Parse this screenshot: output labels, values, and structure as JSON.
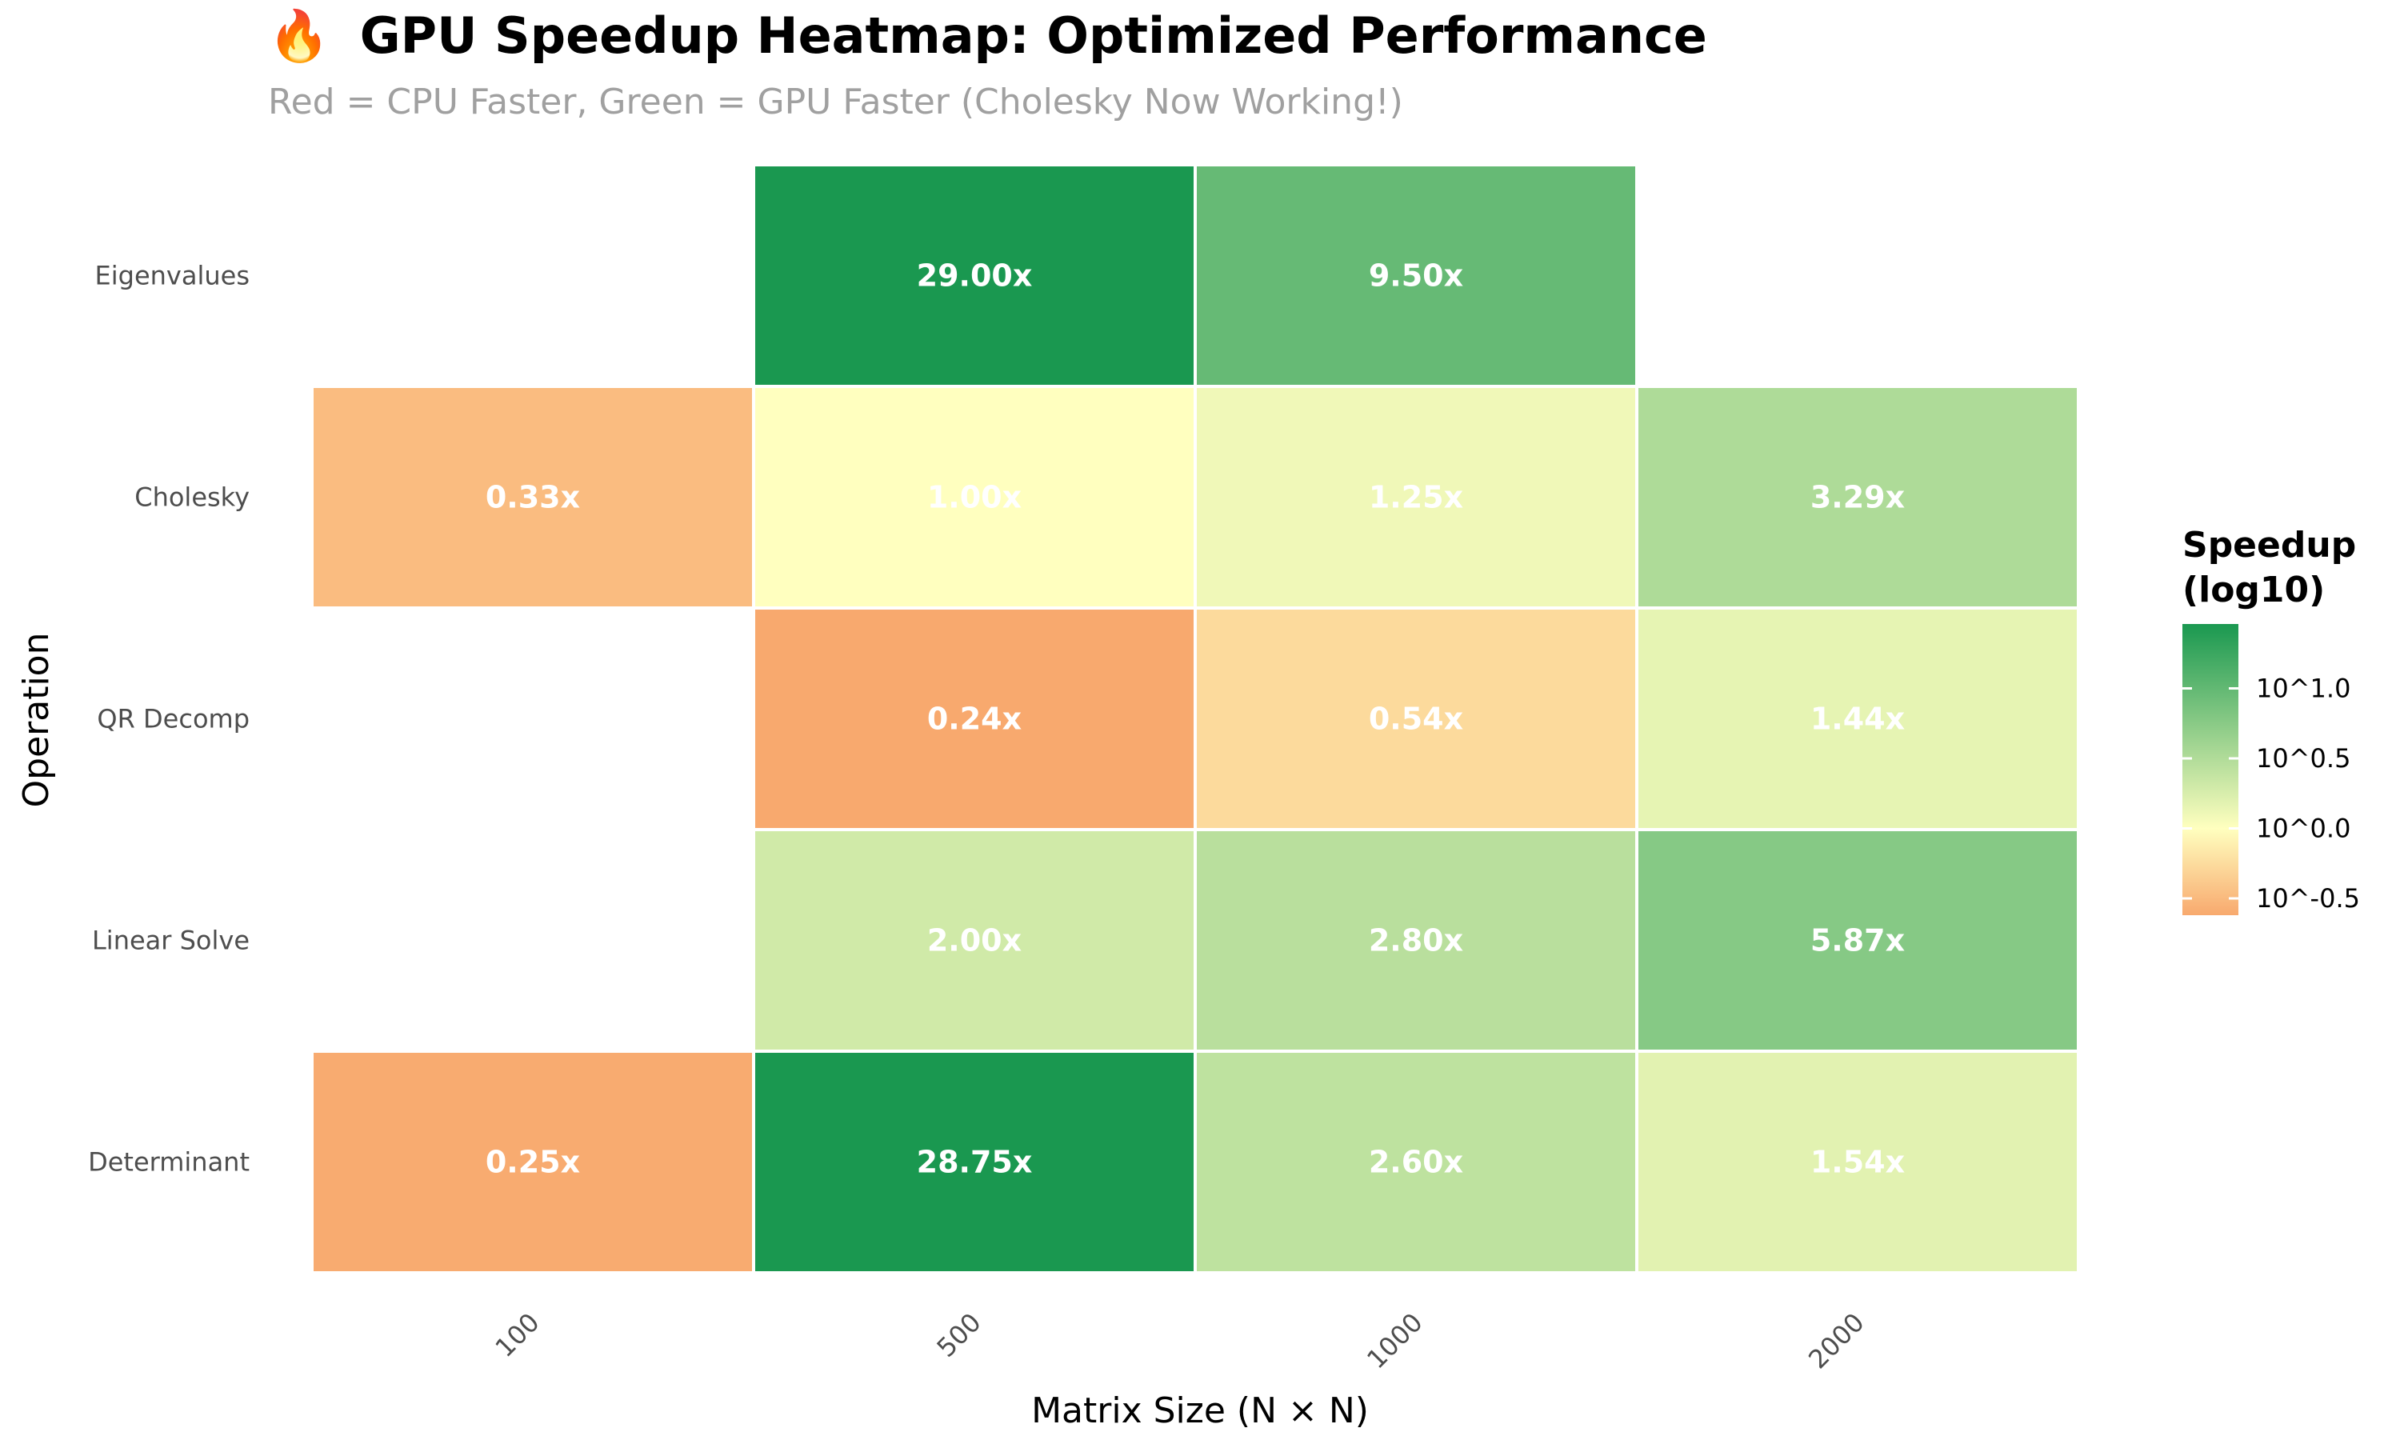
{
  "chart_data": {
    "type": "heatmap",
    "title_icon": "🔥",
    "title": "GPU Speedup Heatmap: Optimized Performance",
    "subtitle": "Red = CPU Faster, Green = GPU Faster (Cholesky Now Working!)",
    "xlabel": "Matrix Size (N × N)",
    "ylabel": "Operation",
    "x": [
      "100",
      "500",
      "1000",
      "2000"
    ],
    "y": [
      "Eigenvalues",
      "Cholesky",
      "QR Decomp",
      "Linear Solve",
      "Determinant"
    ],
    "cells": [
      {
        "row": "Eigenvalues",
        "col": "500",
        "value": 29.0,
        "label": "29.00x"
      },
      {
        "row": "Eigenvalues",
        "col": "1000",
        "value": 9.5,
        "label": "9.50x"
      },
      {
        "row": "Cholesky",
        "col": "100",
        "value": 0.33,
        "label": "0.33x"
      },
      {
        "row": "Cholesky",
        "col": "500",
        "value": 1.0,
        "label": "1.00x"
      },
      {
        "row": "Cholesky",
        "col": "1000",
        "value": 1.25,
        "label": "1.25x"
      },
      {
        "row": "Cholesky",
        "col": "2000",
        "value": 3.29,
        "label": "3.29x"
      },
      {
        "row": "QR Decomp",
        "col": "500",
        "value": 0.24,
        "label": "0.24x"
      },
      {
        "row": "QR Decomp",
        "col": "1000",
        "value": 0.54,
        "label": "0.54x"
      },
      {
        "row": "QR Decomp",
        "col": "2000",
        "value": 1.44,
        "label": "1.44x"
      },
      {
        "row": "Linear Solve",
        "col": "500",
        "value": 2.0,
        "label": "2.00x"
      },
      {
        "row": "Linear Solve",
        "col": "1000",
        "value": 2.8,
        "label": "2.80x"
      },
      {
        "row": "Linear Solve",
        "col": "2000",
        "value": 5.87,
        "label": "5.87x"
      },
      {
        "row": "Determinant",
        "col": "100",
        "value": 0.25,
        "label": "0.25x"
      },
      {
        "row": "Determinant",
        "col": "500",
        "value": 28.75,
        "label": "28.75x"
      },
      {
        "row": "Determinant",
        "col": "1000",
        "value": 2.6,
        "label": "2.60x"
      },
      {
        "row": "Determinant",
        "col": "2000",
        "value": 1.54,
        "label": "1.54x"
      }
    ],
    "colorscale": {
      "scale": "log10",
      "domain": [
        -0.62,
        1.46
      ],
      "low_color": "#f8a96e",
      "mid_color": "#ffffbf",
      "high_color": "#1a9850"
    },
    "legend": {
      "title_line1": "Speedup",
      "title_line2": "(log10)",
      "ticks": [
        {
          "value": 1.0,
          "label": "10^1.0"
        },
        {
          "value": 0.5,
          "label": "10^0.5"
        },
        {
          "value": 0.0,
          "label": "10^0.0"
        },
        {
          "value": -0.5,
          "label": "10^-0.5"
        }
      ],
      "placement": "right"
    },
    "grid": false
  }
}
